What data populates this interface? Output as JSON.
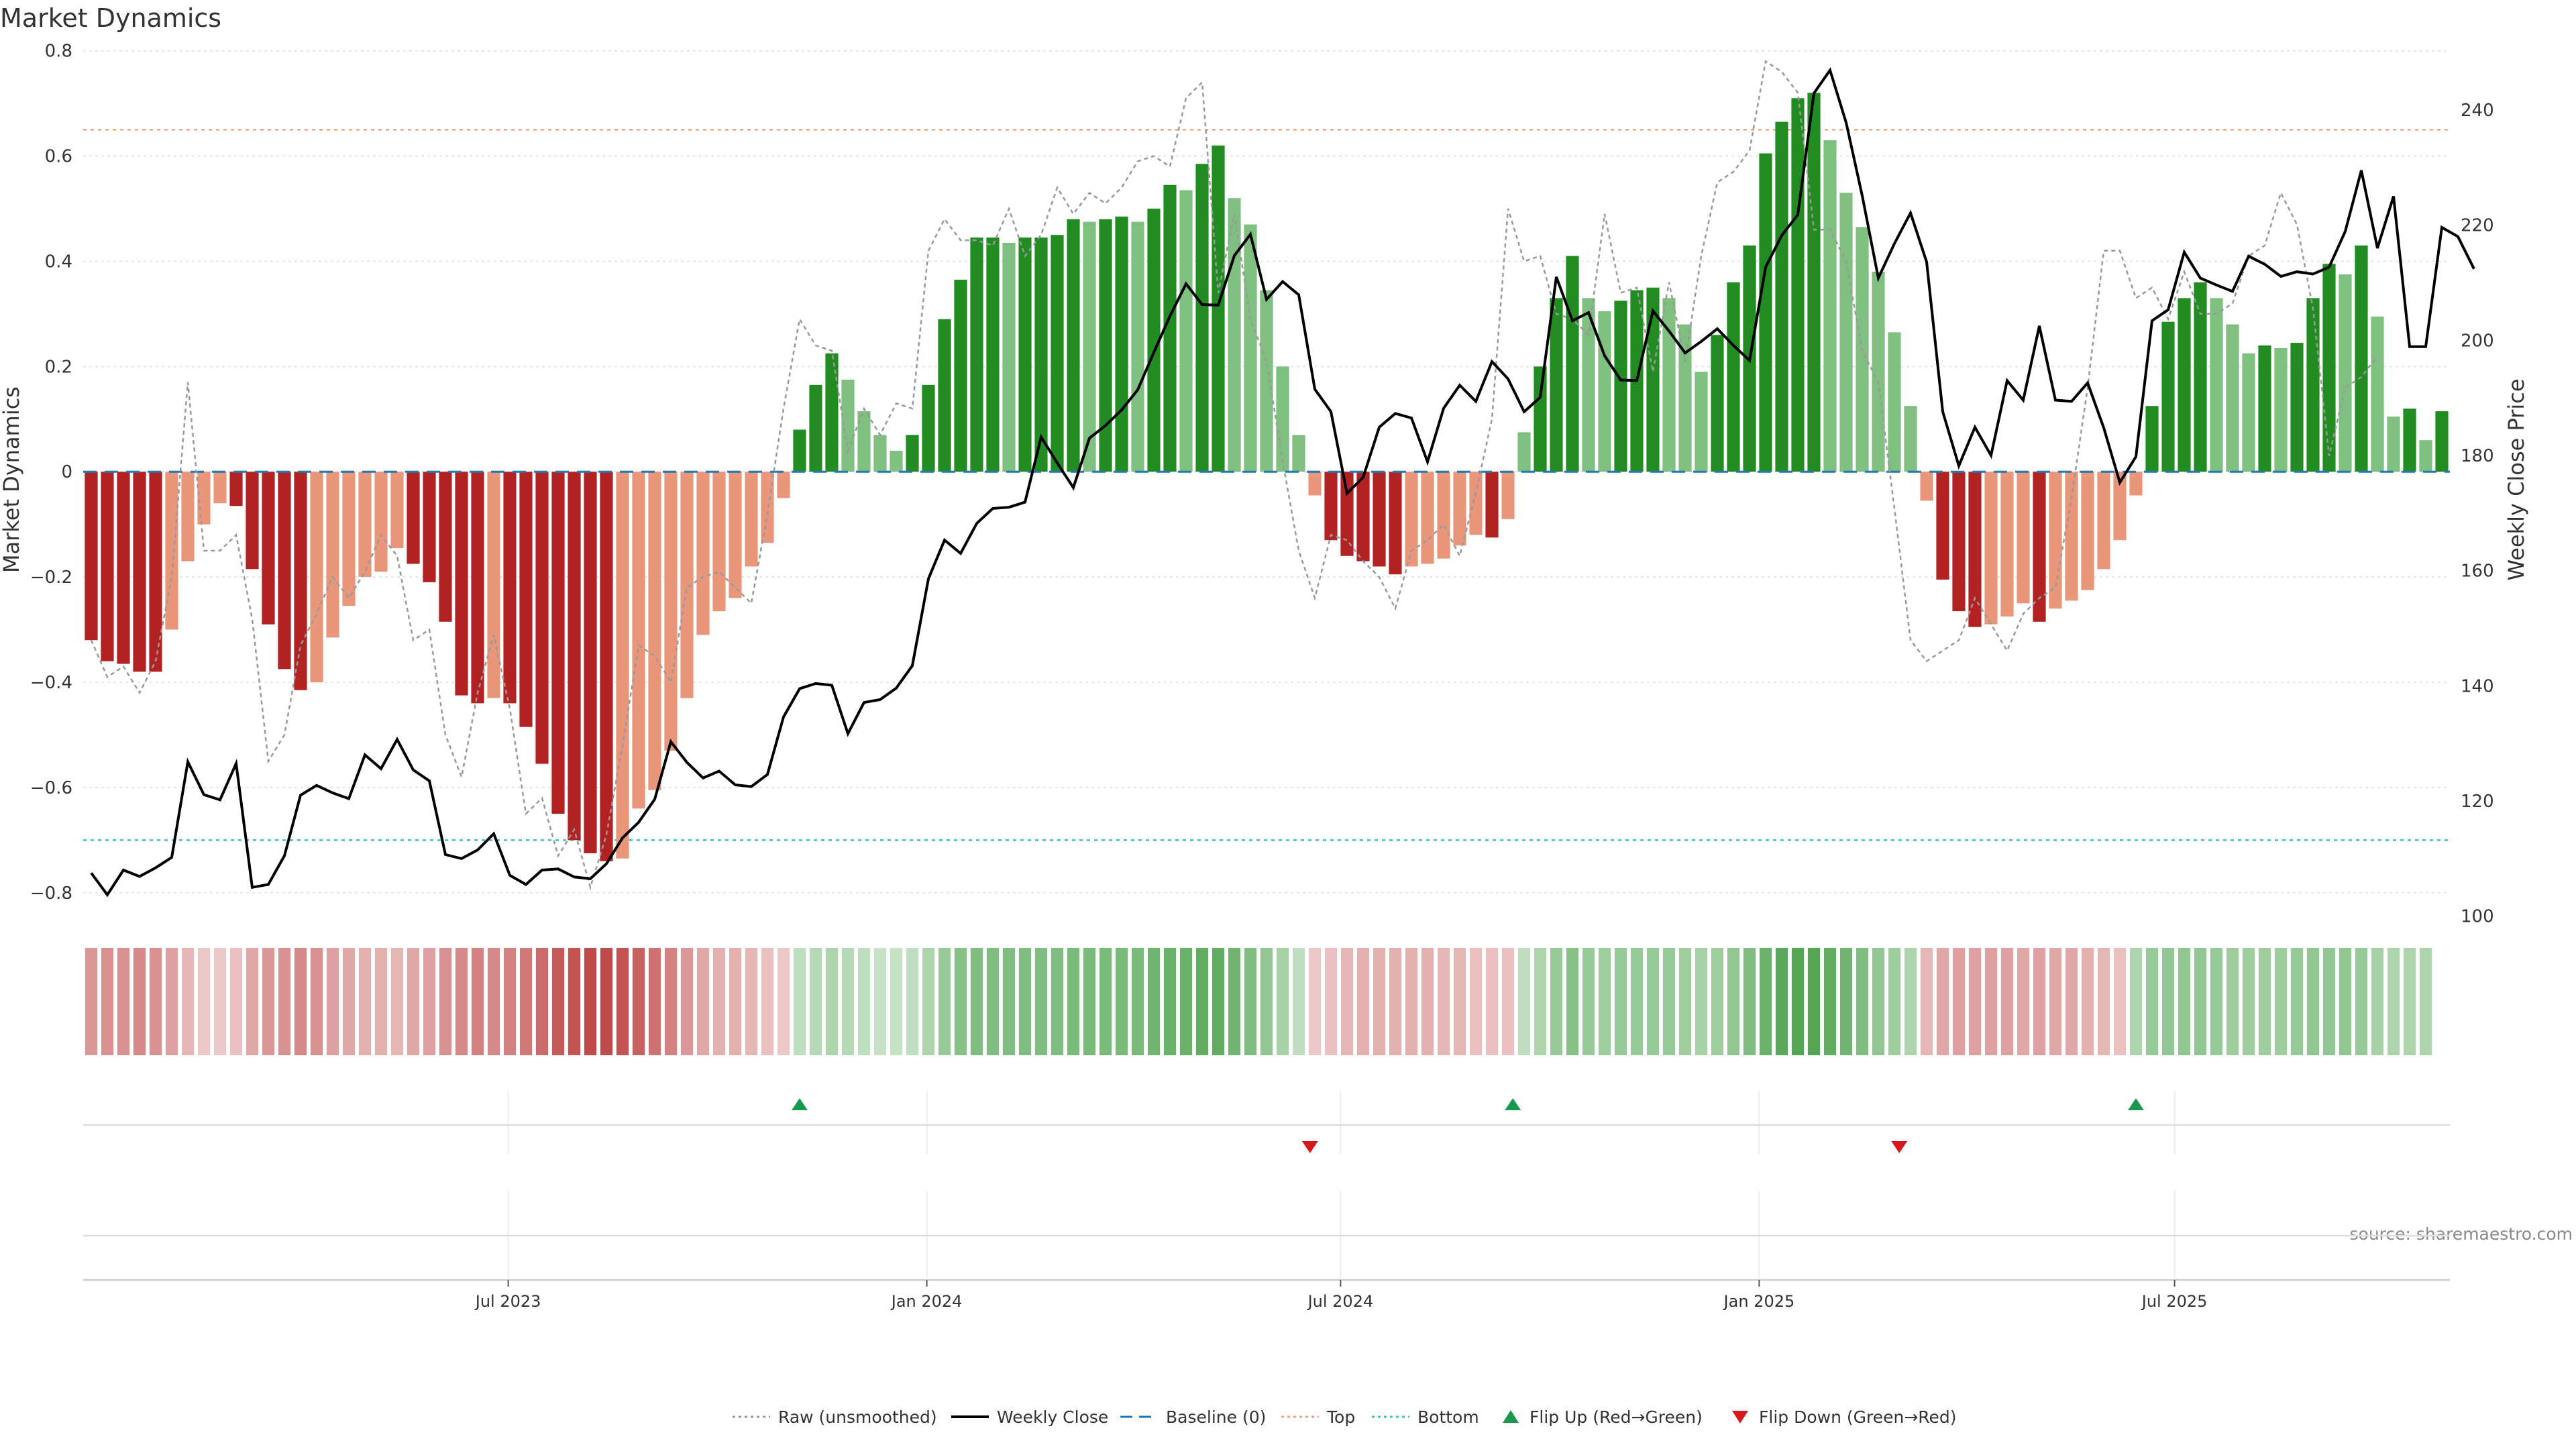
{
  "chart_data": {
    "type": "bar",
    "title": "Market Dynamics",
    "ylabel_left": "Market Dynamics",
    "ylabel_right": "Weekly Close Price",
    "source": "source: sharemaestro.com",
    "ylim_left": [
      -0.85,
      0.82
    ],
    "ylim_right": [
      99.5,
      252.1
    ],
    "yticks_left": [
      "0.8",
      "0.6",
      "0.4",
      "0.2",
      "0",
      "−0.2",
      "−0.4",
      "−0.6",
      "−0.8"
    ],
    "yticks_left_values": [
      0.8,
      0.6,
      0.4,
      0.2,
      0,
      -0.2,
      -0.4,
      -0.6,
      -0.8
    ],
    "yticks_right": [
      "240",
      "220",
      "200",
      "180",
      "160",
      "140",
      "120",
      "100"
    ],
    "yticks_right_values": [
      240,
      220,
      200,
      180,
      160,
      140,
      120,
      100
    ],
    "x_date_ticks": [
      "Jul 2023",
      "Jan 2024",
      "Jul 2024",
      "Jan 2025",
      "Jul 2025"
    ],
    "x_date_tick_week_index": [
      26.4,
      52.4,
      78.1,
      104.1,
      129.9
    ],
    "top_threshold": 0.65,
    "bottom_threshold": -0.7,
    "baseline": 0,
    "grid": true,
    "legend_placement": "bottom-center",
    "colors": {
      "red_strong": "#b22222",
      "red_light": "#e9967a",
      "green_strong": "#228b22",
      "green_light": "#7fbf7f",
      "weekly_close": "#000000",
      "raw": "#999999",
      "baseline": "#1f77b4",
      "top": "#f0a07a",
      "bottom": "#3cc0c8",
      "flip_up": "#1a9850",
      "flip_down": "#d7191c"
    },
    "series": [
      {
        "name": "Market Dynamics (smoothed)",
        "values": [
          -0.32,
          -0.36,
          -0.365,
          -0.38,
          -0.38,
          -0.3,
          -0.17,
          -0.1,
          -0.06,
          -0.065,
          -0.185,
          -0.29,
          -0.375,
          -0.415,
          -0.4,
          -0.315,
          -0.255,
          -0.2,
          -0.19,
          -0.145,
          -0.175,
          -0.21,
          -0.285,
          -0.425,
          -0.44,
          -0.43,
          -0.44,
          -0.485,
          -0.555,
          -0.65,
          -0.7,
          -0.725,
          -0.74,
          -0.735,
          -0.64,
          -0.605,
          -0.53,
          -0.43,
          -0.31,
          -0.265,
          -0.24,
          -0.18,
          -0.135,
          -0.05,
          0.08,
          0.165,
          0.225,
          0.175,
          0.115,
          0.07,
          0.04,
          0.07,
          0.165,
          0.29,
          0.365,
          0.445,
          0.445,
          0.435,
          0.445,
          0.445,
          0.45,
          0.48,
          0.475,
          0.48,
          0.485,
          0.475,
          0.5,
          0.545,
          0.535,
          0.585,
          0.62,
          0.52,
          0.47,
          0.345,
          0.2,
          0.07,
          -0.045,
          -0.13,
          -0.16,
          -0.17,
          -0.18,
          -0.195,
          -0.18,
          -0.175,
          -0.165,
          -0.14,
          -0.12,
          -0.125,
          -0.09,
          0.075,
          0.2,
          0.33,
          0.41,
          0.33,
          0.305,
          0.325,
          0.345,
          0.35,
          0.33,
          0.28,
          0.19,
          0.26,
          0.36,
          0.43,
          0.605,
          0.665,
          0.71,
          0.72,
          0.63,
          0.53,
          0.465,
          0.38,
          0.265,
          0.125,
          -0.055,
          -0.205,
          -0.265,
          -0.295,
          -0.29,
          -0.275,
          -0.25,
          -0.285,
          -0.26,
          -0.245,
          -0.225,
          -0.185,
          -0.13,
          -0.045,
          0.125,
          0.285,
          0.33,
          0.36,
          0.33,
          0.28,
          0.225,
          0.24,
          0.235,
          0.245,
          0.33,
          0.395,
          0.375,
          0.43,
          0.295,
          0.105,
          0.12,
          0.06,
          0.115
        ]
      },
      {
        "name": "Raw (unsmoothed)",
        "values": [
          -0.32,
          -0.39,
          -0.37,
          -0.42,
          -0.36,
          -0.2,
          0.17,
          -0.15,
          -0.15,
          -0.12,
          -0.28,
          -0.55,
          -0.5,
          -0.33,
          -0.27,
          -0.2,
          -0.24,
          -0.19,
          -0.12,
          -0.16,
          -0.32,
          -0.3,
          -0.5,
          -0.58,
          -0.42,
          -0.31,
          -0.45,
          -0.65,
          -0.62,
          -0.73,
          -0.68,
          -0.79,
          -0.69,
          -0.52,
          -0.33,
          -0.35,
          -0.4,
          -0.22,
          -0.2,
          -0.19,
          -0.22,
          -0.25,
          -0.08,
          0.12,
          0.29,
          0.24,
          0.23,
          0.04,
          0.12,
          0.07,
          0.13,
          0.12,
          0.42,
          0.48,
          0.44,
          0.44,
          0.43,
          0.5,
          0.41,
          0.45,
          0.54,
          0.49,
          0.53,
          0.51,
          0.54,
          0.59,
          0.6,
          0.58,
          0.71,
          0.74,
          0.34,
          0.49,
          0.29,
          0.21,
          0.02,
          -0.15,
          -0.24,
          -0.12,
          -0.13,
          -0.17,
          -0.2,
          -0.26,
          -0.15,
          -0.13,
          -0.1,
          -0.16,
          -0.04,
          0.1,
          0.5,
          0.4,
          0.41,
          0.3,
          0.29,
          0.26,
          0.49,
          0.34,
          0.35,
          0.19,
          0.36,
          0.21,
          0.41,
          0.55,
          0.57,
          0.61,
          0.78,
          0.76,
          0.72,
          0.46,
          0.46,
          0.4,
          0.23,
          0.17,
          -0.07,
          -0.32,
          -0.36,
          -0.34,
          -0.32,
          -0.24,
          -0.29,
          -0.34,
          -0.27,
          -0.24,
          -0.22,
          -0.05,
          0.16,
          0.42,
          0.42,
          0.33,
          0.35,
          0.29,
          0.38,
          0.3,
          0.3,
          0.32,
          0.41,
          0.43,
          0.53,
          0.47,
          0.31,
          0.03,
          0.16,
          0.18,
          0.22
        ]
      },
      {
        "name": "Weekly Close",
        "values": [
          107.5,
          103.7,
          108.0,
          106.9,
          108.4,
          110.2,
          126.8,
          121.1,
          120.2,
          126.5,
          105.0,
          105.5,
          110.5,
          121.0,
          122.7,
          121.4,
          120.4,
          128.0,
          125.6,
          130.7,
          125.4,
          123.5,
          110.7,
          110.0,
          111.5,
          114.3,
          107.1,
          105.5,
          108.0,
          108.2,
          106.8,
          106.5,
          109.1,
          113.6,
          116.3,
          120.3,
          130.3,
          126.7,
          124.0,
          125.2,
          122.8,
          122.5,
          124.6,
          134.6,
          139.5,
          140.4,
          140.1,
          131.7,
          137.1,
          137.6,
          139.6,
          143.5,
          158.6,
          165.3,
          163.0,
          168.2,
          170.8,
          171.0,
          171.9,
          183.2,
          178.7,
          174.4,
          183.0,
          185.2,
          187.9,
          191.4,
          197.9,
          204.2,
          209.8,
          206.2,
          206.1,
          214.7,
          218.4,
          207.1,
          210.2,
          207.9,
          191.5,
          187.6,
          173.4,
          176.2,
          184.9,
          187.3,
          186.5,
          178.9,
          188.2,
          192.2,
          189.4,
          196.3,
          193.3,
          187.6,
          190.1,
          211.0,
          203.4,
          204.8,
          197.3,
          193.1,
          193.0,
          205.1,
          201.6,
          197.8,
          199.8,
          202.0,
          199.1,
          196.5,
          212.7,
          218.2,
          221.8,
          242.9,
          246.9,
          237.8,
          225.1,
          210.8,
          216.8,
          222.1,
          213.6,
          187.6,
          178.2,
          184.9,
          180.0,
          193.0,
          189.6,
          202.5,
          189.6,
          189.4,
          192.6,
          184.8,
          175.3,
          179.8,
          203.4,
          205.3,
          215.3,
          210.8,
          209.6,
          208.5,
          214.6,
          213.2,
          211.1,
          211.9,
          211.5,
          212.7,
          218.9,
          229.5,
          216.0,
          225.0,
          198.9,
          198.9,
          219.6,
          218.0,
          212.4
        ]
      }
    ],
    "heat_strip": [
      {
        "sign": -1,
        "intensity": 0.45
      },
      {
        "sign": -1,
        "intensity": 0.5
      },
      {
        "sign": -1,
        "intensity": 0.5
      },
      {
        "sign": -1,
        "intensity": 0.55
      },
      {
        "sign": -1,
        "intensity": 0.5
      },
      {
        "sign": -1,
        "intensity": 0.4
      },
      {
        "sign": -1,
        "intensity": 0.25
      },
      {
        "sign": -1,
        "intensity": 0.15
      },
      {
        "sign": -1,
        "intensity": 0.15
      },
      {
        "sign": -1,
        "intensity": 0.2
      },
      {
        "sign": -1,
        "intensity": 0.35
      },
      {
        "sign": -1,
        "intensity": 0.45
      },
      {
        "sign": -1,
        "intensity": 0.5
      },
      {
        "sign": -1,
        "intensity": 0.55
      },
      {
        "sign": -1,
        "intensity": 0.5
      },
      {
        "sign": -1,
        "intensity": 0.4
      },
      {
        "sign": -1,
        "intensity": 0.35
      },
      {
        "sign": -1,
        "intensity": 0.3
      },
      {
        "sign": -1,
        "intensity": 0.3
      },
      {
        "sign": -1,
        "intensity": 0.25
      },
      {
        "sign": -1,
        "intensity": 0.35
      },
      {
        "sign": -1,
        "intensity": 0.4
      },
      {
        "sign": -1,
        "intensity": 0.5
      },
      {
        "sign": -1,
        "intensity": 0.55
      },
      {
        "sign": -1,
        "intensity": 0.6
      },
      {
        "sign": -1,
        "intensity": 0.55
      },
      {
        "sign": -1,
        "intensity": 0.6
      },
      {
        "sign": -1,
        "intensity": 0.65
      },
      {
        "sign": -1,
        "intensity": 0.75
      },
      {
        "sign": -1,
        "intensity": 0.85
      },
      {
        "sign": -1,
        "intensity": 0.9
      },
      {
        "sign": -1,
        "intensity": 0.95
      },
      {
        "sign": -1,
        "intensity": 0.95
      },
      {
        "sign": -1,
        "intensity": 0.9
      },
      {
        "sign": -1,
        "intensity": 0.8
      },
      {
        "sign": -1,
        "intensity": 0.7
      },
      {
        "sign": -1,
        "intensity": 0.6
      },
      {
        "sign": -1,
        "intensity": 0.45
      },
      {
        "sign": -1,
        "intensity": 0.35
      },
      {
        "sign": -1,
        "intensity": 0.3
      },
      {
        "sign": -1,
        "intensity": 0.3
      },
      {
        "sign": -1,
        "intensity": 0.25
      },
      {
        "sign": -1,
        "intensity": 0.2
      },
      {
        "sign": -1,
        "intensity": 0.15
      },
      {
        "sign": 1,
        "intensity": 0.2
      },
      {
        "sign": 1,
        "intensity": 0.25
      },
      {
        "sign": 1,
        "intensity": 0.3
      },
      {
        "sign": 1,
        "intensity": 0.25
      },
      {
        "sign": 1,
        "intensity": 0.2
      },
      {
        "sign": 1,
        "intensity": 0.15
      },
      {
        "sign": 1,
        "intensity": 0.15
      },
      {
        "sign": 1,
        "intensity": 0.2
      },
      {
        "sign": 1,
        "intensity": 0.3
      },
      {
        "sign": 1,
        "intensity": 0.45
      },
      {
        "sign": 1,
        "intensity": 0.55
      },
      {
        "sign": 1,
        "intensity": 0.6
      },
      {
        "sign": 1,
        "intensity": 0.6
      },
      {
        "sign": 1,
        "intensity": 0.6
      },
      {
        "sign": 1,
        "intensity": 0.6
      },
      {
        "sign": 1,
        "intensity": 0.6
      },
      {
        "sign": 1,
        "intensity": 0.6
      },
      {
        "sign": 1,
        "intensity": 0.65
      },
      {
        "sign": 1,
        "intensity": 0.65
      },
      {
        "sign": 1,
        "intensity": 0.65
      },
      {
        "sign": 1,
        "intensity": 0.65
      },
      {
        "sign": 1,
        "intensity": 0.65
      },
      {
        "sign": 1,
        "intensity": 0.7
      },
      {
        "sign": 1,
        "intensity": 0.75
      },
      {
        "sign": 1,
        "intensity": 0.75
      },
      {
        "sign": 1,
        "intensity": 0.8
      },
      {
        "sign": 1,
        "intensity": 0.8
      },
      {
        "sign": 1,
        "intensity": 0.7
      },
      {
        "sign": 1,
        "intensity": 0.6
      },
      {
        "sign": 1,
        "intensity": 0.5
      },
      {
        "sign": 1,
        "intensity": 0.35
      },
      {
        "sign": 1,
        "intensity": 0.2
      },
      {
        "sign": -1,
        "intensity": 0.15
      },
      {
        "sign": -1,
        "intensity": 0.2
      },
      {
        "sign": -1,
        "intensity": 0.25
      },
      {
        "sign": -1,
        "intensity": 0.3
      },
      {
        "sign": -1,
        "intensity": 0.3
      },
      {
        "sign": -1,
        "intensity": 0.3
      },
      {
        "sign": -1,
        "intensity": 0.3
      },
      {
        "sign": -1,
        "intensity": 0.3
      },
      {
        "sign": -1,
        "intensity": 0.25
      },
      {
        "sign": -1,
        "intensity": 0.25
      },
      {
        "sign": -1,
        "intensity": 0.2
      },
      {
        "sign": -1,
        "intensity": 0.2
      },
      {
        "sign": -1,
        "intensity": 0.2
      },
      {
        "sign": 1,
        "intensity": 0.2
      },
      {
        "sign": 1,
        "intensity": 0.3
      },
      {
        "sign": 1,
        "intensity": 0.45
      },
      {
        "sign": 1,
        "intensity": 0.55
      },
      {
        "sign": 1,
        "intensity": 0.45
      },
      {
        "sign": 1,
        "intensity": 0.4
      },
      {
        "sign": 1,
        "intensity": 0.45
      },
      {
        "sign": 1,
        "intensity": 0.45
      },
      {
        "sign": 1,
        "intensity": 0.45
      },
      {
        "sign": 1,
        "intensity": 0.45
      },
      {
        "sign": 1,
        "intensity": 0.4
      },
      {
        "sign": 1,
        "intensity": 0.35
      },
      {
        "sign": 1,
        "intensity": 0.4
      },
      {
        "sign": 1,
        "intensity": 0.5
      },
      {
        "sign": 1,
        "intensity": 0.6
      },
      {
        "sign": 1,
        "intensity": 0.75
      },
      {
        "sign": 1,
        "intensity": 0.85
      },
      {
        "sign": 1,
        "intensity": 0.9
      },
      {
        "sign": 1,
        "intensity": 0.9
      },
      {
        "sign": 1,
        "intensity": 0.8
      },
      {
        "sign": 1,
        "intensity": 0.7
      },
      {
        "sign": 1,
        "intensity": 0.6
      },
      {
        "sign": 1,
        "intensity": 0.5
      },
      {
        "sign": 1,
        "intensity": 0.4
      },
      {
        "sign": 1,
        "intensity": 0.3
      },
      {
        "sign": -1,
        "intensity": 0.25
      },
      {
        "sign": -1,
        "intensity": 0.35
      },
      {
        "sign": -1,
        "intensity": 0.4
      },
      {
        "sign": -1,
        "intensity": 0.4
      },
      {
        "sign": -1,
        "intensity": 0.4
      },
      {
        "sign": -1,
        "intensity": 0.4
      },
      {
        "sign": -1,
        "intensity": 0.35
      },
      {
        "sign": -1,
        "intensity": 0.4
      },
      {
        "sign": -1,
        "intensity": 0.35
      },
      {
        "sign": -1,
        "intensity": 0.35
      },
      {
        "sign": -1,
        "intensity": 0.3
      },
      {
        "sign": -1,
        "intensity": 0.25
      },
      {
        "sign": -1,
        "intensity": 0.2
      },
      {
        "sign": 1,
        "intensity": 0.3
      },
      {
        "sign": 1,
        "intensity": 0.45
      },
      {
        "sign": 1,
        "intensity": 0.5
      },
      {
        "sign": 1,
        "intensity": 0.5
      },
      {
        "sign": 1,
        "intensity": 0.5
      },
      {
        "sign": 1,
        "intensity": 0.45
      },
      {
        "sign": 1,
        "intensity": 0.4
      },
      {
        "sign": 1,
        "intensity": 0.4
      },
      {
        "sign": 1,
        "intensity": 0.4
      },
      {
        "sign": 1,
        "intensity": 0.4
      },
      {
        "sign": 1,
        "intensity": 0.45
      },
      {
        "sign": 1,
        "intensity": 0.5
      },
      {
        "sign": 1,
        "intensity": 0.5
      },
      {
        "sign": 1,
        "intensity": 0.5
      },
      {
        "sign": 1,
        "intensity": 0.45
      },
      {
        "sign": 1,
        "intensity": 0.35
      },
      {
        "sign": 1,
        "intensity": 0.3
      },
      {
        "sign": 1,
        "intensity": 0.3
      },
      {
        "sign": 1,
        "intensity": 0.3
      }
    ],
    "flip_up_weeks": [
      44.5,
      88.8,
      127.5
    ],
    "flip_down_weeks": [
      76.2,
      112.8
    ],
    "legend": [
      {
        "label": "Raw (unsmoothed)",
        "style": "dotted-line",
        "color": "#999999"
      },
      {
        "label": "Weekly Close",
        "style": "solid-line",
        "color": "#000000"
      },
      {
        "label": "Baseline (0)",
        "style": "dashed-line",
        "color": "#1f77b4"
      },
      {
        "label": "Top",
        "style": "dotted-line",
        "color": "#f0a07a"
      },
      {
        "label": "Bottom",
        "style": "dotted-line",
        "color": "#3cc0c8"
      },
      {
        "label": "Flip Up (Red→Green)",
        "style": "triangle-up",
        "color": "#1a9850"
      },
      {
        "label": "Flip Down (Green→Red)",
        "style": "triangle-down",
        "color": "#d7191c"
      }
    ]
  }
}
